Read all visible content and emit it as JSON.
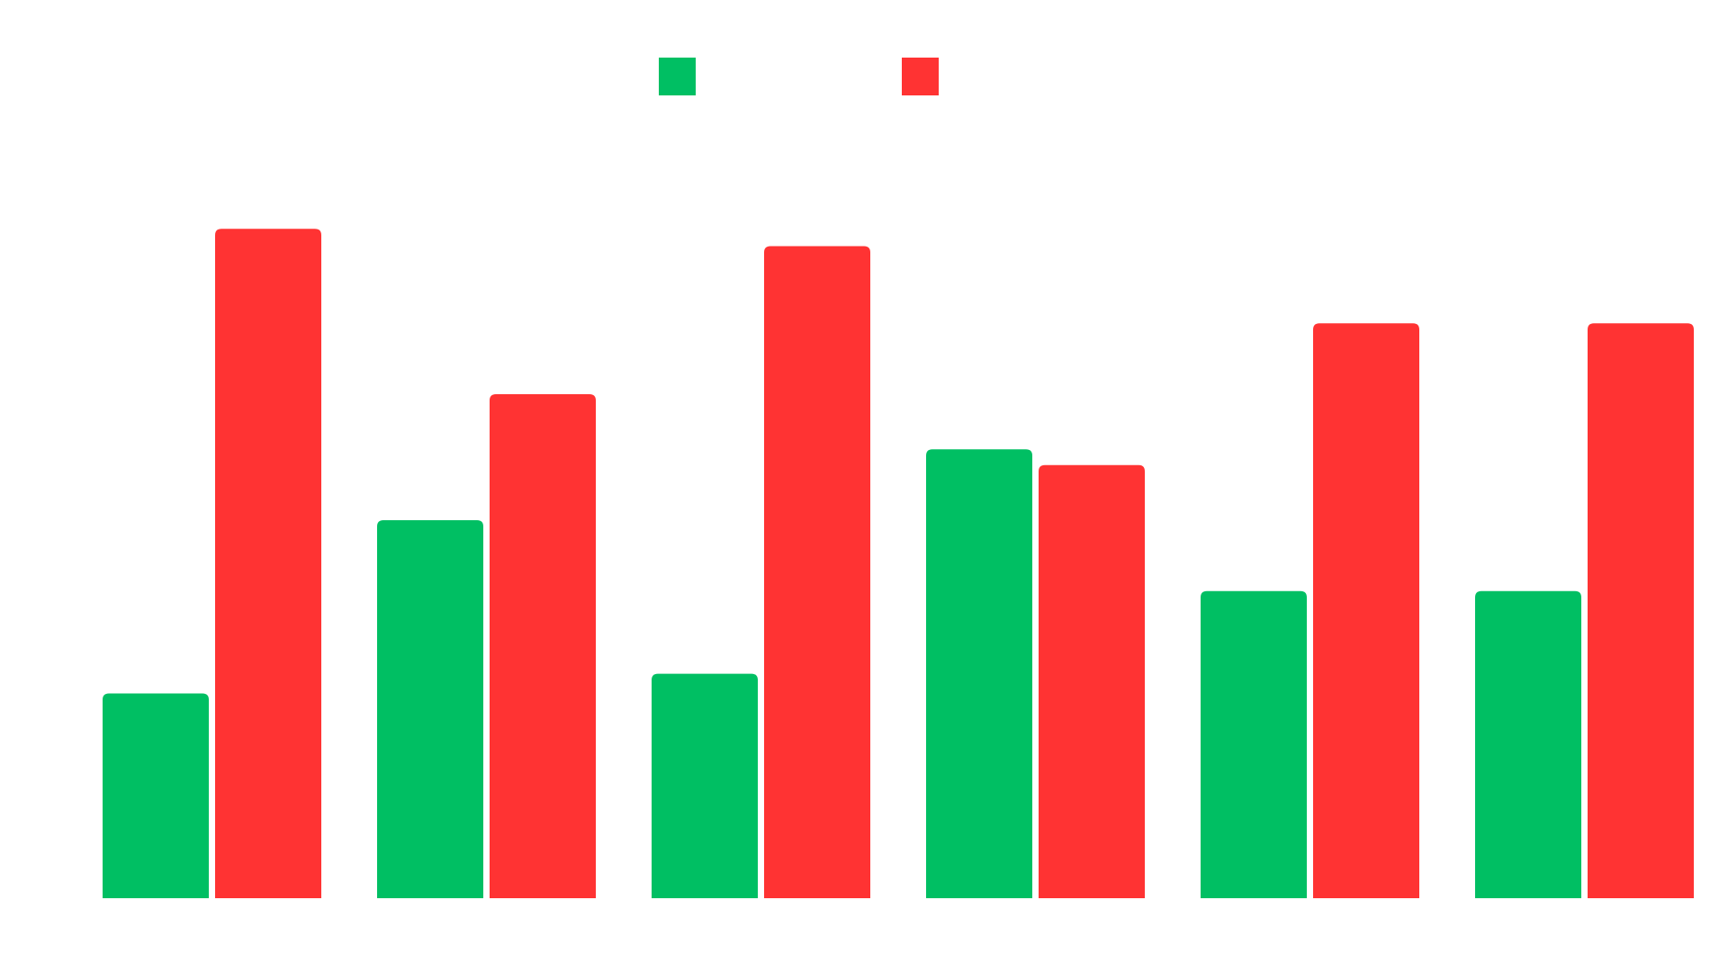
{
  "chart_data": {
    "type": "bar",
    "categories": [
      "",
      "",
      "",
      "",
      "",
      ""
    ],
    "series": [
      {
        "name": "",
        "color": "#00BF63",
        "values": [
          26,
          48,
          28.5,
          57,
          39,
          39
        ]
      },
      {
        "name": "",
        "color": "#FF3333",
        "values": [
          85,
          64,
          82.8,
          55,
          73,
          73
        ]
      }
    ],
    "ylim": [
      0,
      100
    ],
    "grid": false,
    "legend": "top-center",
    "title": "",
    "xlabel": "",
    "ylabel": ""
  }
}
